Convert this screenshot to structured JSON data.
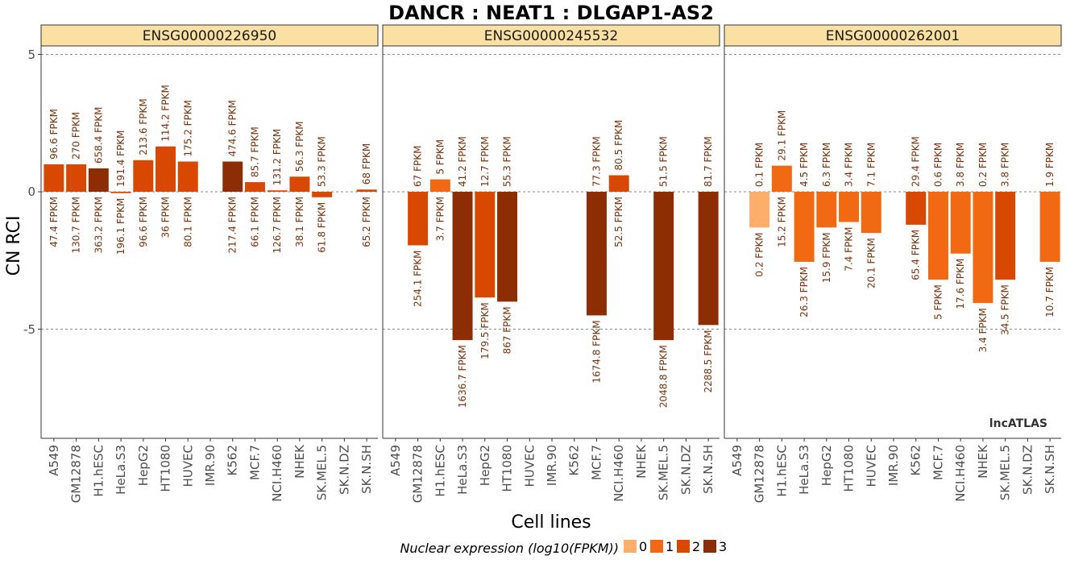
{
  "chart_data": {
    "type": "bar",
    "title": "DANCR : NEAT1 : DLGAP1-AS2",
    "xlabel": "Cell lines",
    "ylabel": "CN RCI",
    "ylim": [
      -8.9,
      5.1
    ],
    "yticks": [
      5,
      0,
      -5
    ],
    "watermark": "lncATLAS",
    "categories": [
      "A549",
      "GM12878",
      "H1.hESC",
      "HeLa.S3",
      "HepG2",
      "HT1080",
      "HUVEC",
      "IMR.90",
      "K562",
      "MCF.7",
      "NCI.H460",
      "NHEK",
      "SK.MEL.5",
      "SK.N.DZ",
      "SK.N.SH"
    ],
    "legend": {
      "title": "Nuclear expression (log10(FPKM))",
      "levels": [
        "0",
        "1",
        "2",
        "3"
      ],
      "colors": [
        "#fdae6b",
        "#f16913",
        "#d94801",
        "#8c2d04"
      ]
    },
    "panels": [
      {
        "name": "ENSG00000226950",
        "values": [
          1.0,
          1.0,
          0.85,
          -0.05,
          1.15,
          1.65,
          1.1,
          null,
          1.1,
          0.35,
          0.05,
          0.55,
          -0.2,
          null,
          0.08
        ],
        "level": [
          2,
          2,
          3,
          2,
          2,
          2,
          2,
          null,
          3,
          2,
          2,
          2,
          2,
          null,
          2
        ],
        "cyto_fpkm": [
          "96.6 FPKM",
          "270 FPKM",
          "658.4 FPKM",
          "191.4 FPKM",
          "213.6 FPKM",
          "114.2 FPKM",
          "175.2 FPKM",
          null,
          "474.6 FPKM",
          "85.7 FPKM",
          "131.2 FPKM",
          "56.3 FPKM",
          "53.3 FPKM",
          null,
          "68 FPKM"
        ],
        "nuc_fpkm": [
          "47.4 FPKM",
          "130.7 FPKM",
          "363.2 FPKM",
          "196.1 FPKM",
          "96.6 FPKM",
          "36 FPKM",
          "80.1 FPKM",
          null,
          "217.4 FPKM",
          "66.1 FPKM",
          "126.7 FPKM",
          "38.1 FPKM",
          "61.8 FPKM",
          null,
          "65.2 FPKM"
        ]
      },
      {
        "name": "ENSG00000245532",
        "values": [
          null,
          -1.95,
          0.45,
          -5.4,
          -3.85,
          -4.0,
          null,
          null,
          null,
          -4.5,
          0.6,
          null,
          -5.4,
          null,
          -4.85
        ],
        "level": [
          null,
          2,
          1,
          3,
          2,
          3,
          null,
          null,
          null,
          3,
          2,
          null,
          3,
          null,
          3
        ],
        "cyto_fpkm": [
          null,
          "67 FPKM",
          "5 FPKM",
          "41.2 FPKM",
          "12.7 FPKM",
          "55.3 FPKM",
          null,
          null,
          null,
          "77.3 FPKM",
          "80.5 FPKM",
          null,
          "51.5 FPKM",
          null,
          "81.7 FPKM"
        ],
        "nuc_fpkm": [
          null,
          "254.1 FPKM",
          "3.7 FPKM",
          "1636.7 FPKM",
          "179.5 FPKM",
          "867 FPKM",
          null,
          null,
          null,
          "1674.8 FPKM",
          "52.5 FPKM",
          null,
          "2048.8 FPKM",
          null,
          "2288.5 FPKM"
        ]
      },
      {
        "name": "ENSG00000262001",
        "values": [
          null,
          -1.3,
          0.95,
          -2.55,
          -1.3,
          -1.1,
          -1.5,
          null,
          -1.2,
          -3.2,
          -2.25,
          -4.05,
          -3.2,
          null,
          -2.55
        ],
        "level": [
          null,
          0,
          1,
          1,
          1,
          1,
          1,
          null,
          2,
          1,
          1,
          1,
          2,
          null,
          1
        ],
        "cyto_fpkm": [
          null,
          "0.1 FPKM",
          "29.1 FPKM",
          "4.5 FPKM",
          "6.3 FPKM",
          "3.4 FPKM",
          "7.1 FPKM",
          null,
          "29.4 FPKM",
          "0.6 FPKM",
          "3.8 FPKM",
          "0.2 FPKM",
          "3.8 FPKM",
          null,
          "1.9 FPKM"
        ],
        "nuc_fpkm": [
          null,
          "0.2 FPKM",
          "15.2 FPKM",
          "26.3 FPKM",
          "15.9 FPKM",
          "7.4 FPKM",
          "20.1 FPKM",
          null,
          "65.4 FPKM",
          "5 FPKM",
          "17.6 FPKM",
          "3.4 FPKM",
          "34.5 FPKM",
          null,
          "10.7 FPKM"
        ]
      }
    ]
  }
}
